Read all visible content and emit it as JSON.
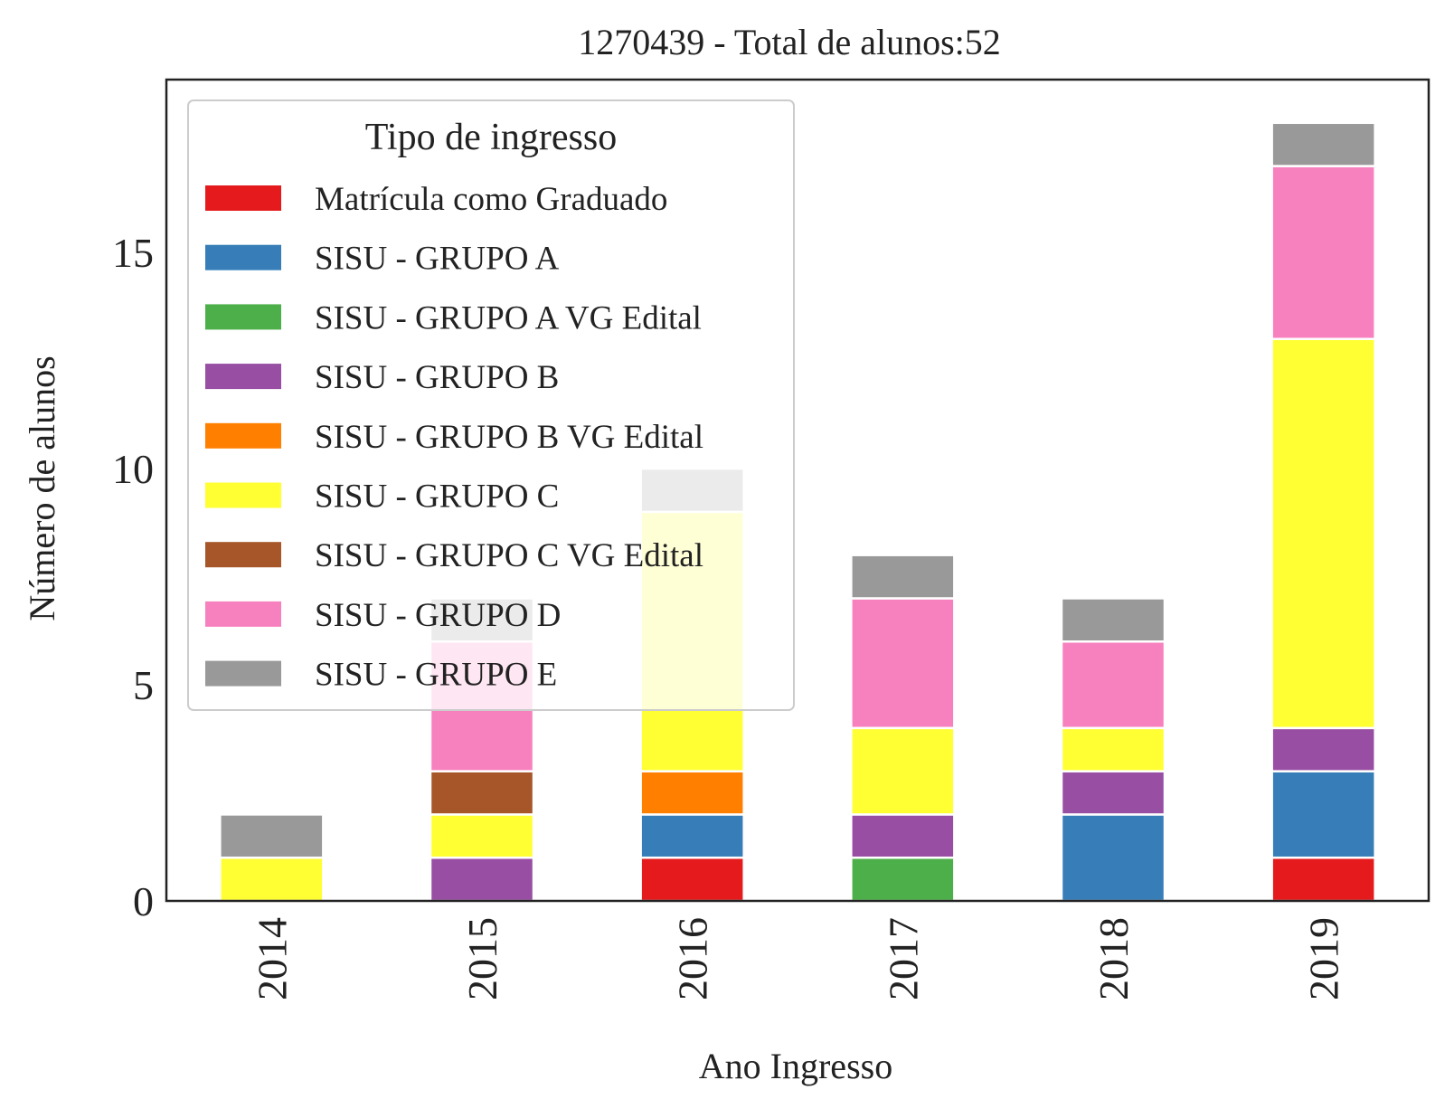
{
  "chart_data": {
    "type": "bar",
    "stacked": true,
    "title": "1270439 - Total de alunos:52",
    "xlabel": "Ano Ingresso",
    "ylabel": "Número de alunos",
    "ylim": [
      0,
      19
    ],
    "yticks": [
      0,
      5,
      10,
      15
    ],
    "grid": false,
    "categories": [
      "2014",
      "2015",
      "2016",
      "2017",
      "2018",
      "2019"
    ],
    "legend": {
      "title": "Tipo de ingresso",
      "placement": "top-left"
    },
    "series": [
      {
        "name": "Matrícula como Graduado",
        "color": "#e41a1c",
        "values": [
          0,
          0,
          1,
          0,
          0,
          1
        ]
      },
      {
        "name": "SISU - GRUPO A",
        "color": "#377eb8",
        "values": [
          0,
          0,
          1,
          0,
          2,
          2
        ]
      },
      {
        "name": "SISU - GRUPO A VG Edital",
        "color": "#4daf4a",
        "values": [
          0,
          0,
          0,
          1,
          0,
          0
        ]
      },
      {
        "name": "SISU - GRUPO B",
        "color": "#984ea3",
        "values": [
          0,
          1,
          0,
          1,
          1,
          1
        ]
      },
      {
        "name": "SISU - GRUPO B VG Edital",
        "color": "#ff7f00",
        "values": [
          0,
          0,
          1,
          0,
          0,
          0
        ]
      },
      {
        "name": "SISU - GRUPO C",
        "color": "#ffff33",
        "values": [
          1,
          1,
          6,
          2,
          1,
          9
        ]
      },
      {
        "name": "SISU - GRUPO C VG Edital",
        "color": "#a65628",
        "values": [
          0,
          1,
          0,
          0,
          0,
          0
        ]
      },
      {
        "name": "SISU - GRUPO D",
        "color": "#f781bf",
        "values": [
          0,
          3,
          0,
          3,
          2,
          4
        ]
      },
      {
        "name": "SISU - GRUPO E",
        "color": "#999999",
        "values": [
          1,
          1,
          1,
          1,
          1,
          1
        ]
      }
    ]
  }
}
